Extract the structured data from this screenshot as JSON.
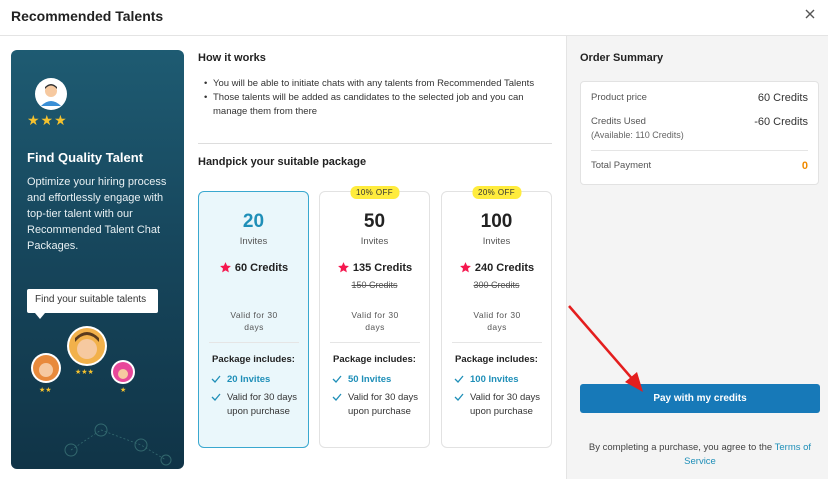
{
  "dialog": {
    "title": "Recommended Talents",
    "close_icon": "close-icon"
  },
  "promo": {
    "title": "Find Quality Talent",
    "description": "Optimize your hiring process and effortlessly engage with top-tier talent with our Recommended Talent Chat Packages.",
    "bubble": "Find your suitable talents",
    "stars": "★★★"
  },
  "how": {
    "title": "How it works",
    "items": [
      "You will be able to initiate chats with any talents from Recommended Talents",
      "Those talents will be added as candidates to the selected job and you can manage them from there"
    ]
  },
  "packages": {
    "title": "Handpick your suitable package",
    "includes_label": "Package includes:",
    "cards": [
      {
        "invites": "20",
        "unit": "Invites",
        "credits": "60 Credits",
        "old_credits": "",
        "badge": "",
        "valid": "Valid for 30 days",
        "feature1": "20 Invites",
        "feature2": "Valid for 30 days upon purchase",
        "selected": true
      },
      {
        "invites": "50",
        "unit": "Invites",
        "credits": "135 Credits",
        "old_credits": "150 Credits",
        "badge": "10% OFF",
        "valid": "Valid for 30 days",
        "feature1": "50 Invites",
        "feature2": "Valid for 30 days upon purchase",
        "selected": false
      },
      {
        "invites": "100",
        "unit": "Invites",
        "credits": "240 Credits",
        "old_credits": "300 Credits",
        "badge": "20% OFF",
        "valid": "Valid for 30 days",
        "feature1": "100 Invites",
        "feature2": "Valid for 30 days upon purchase",
        "selected": false
      }
    ]
  },
  "summary": {
    "title": "Order Summary",
    "product_price_label": "Product price",
    "product_price_value": "60 Credits",
    "credits_used_label": "Credits Used",
    "credits_used_value": "-60 Credits",
    "available": "(Available: 110 Credits)",
    "total_label": "Total Payment",
    "total_value": "0"
  },
  "pay_button": "Pay with my credits",
  "terms": {
    "text": "By completing a purchase, you agree to the ",
    "link": "Terms of Service"
  },
  "colors": {
    "accent": "#1779b8",
    "teal": "#1f8fb8",
    "orange": "#f08a00",
    "badge": "#ffec3d",
    "star": "#f5184f"
  }
}
